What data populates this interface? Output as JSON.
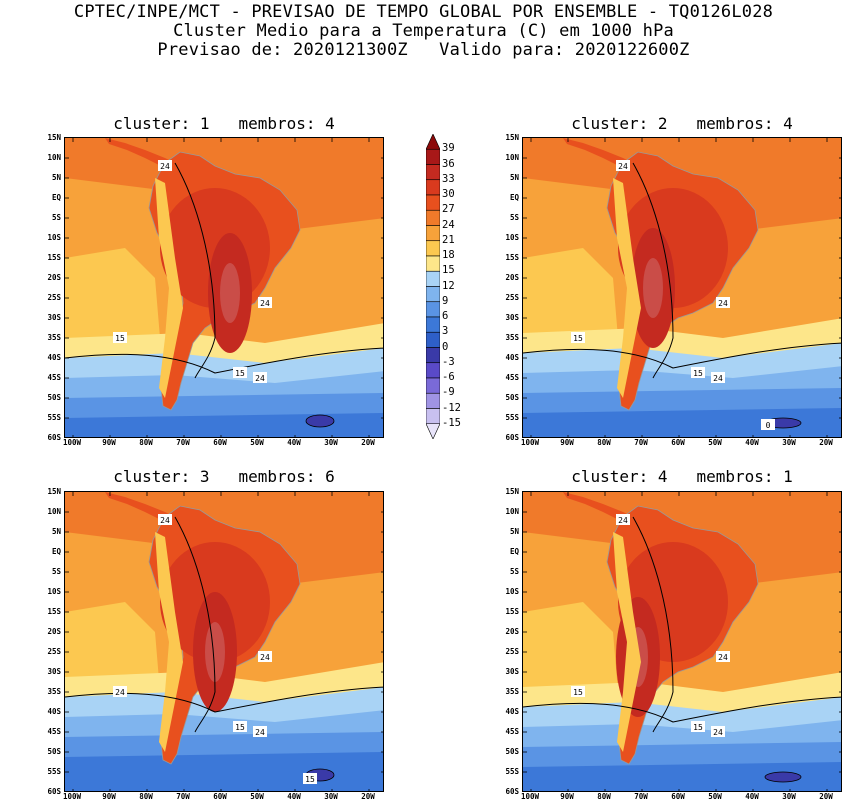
{
  "header": {
    "line1": "CPTEC/INPE/MCT - PREVISAO DE TEMPO GLOBAL POR ENSEMBLE - TQ0126L028",
    "line2": "Cluster Medio para a Temperatura (C) em 1000 hPa",
    "line3": "Previsao de: 2020121300Z   Valido para: 2020122600Z"
  },
  "panels": [
    {
      "title": "cluster: 1   membros: 4"
    },
    {
      "title": "cluster: 2   membros: 4"
    },
    {
      "title": "cluster: 3   membros: 6"
    },
    {
      "title": "cluster: 4   membros: 1"
    }
  ],
  "axes": {
    "lat_labels": [
      "15N",
      "10N",
      "5N",
      "EQ",
      "5S",
      "10S",
      "15S",
      "20S",
      "25S",
      "30S",
      "35S",
      "40S",
      "45S",
      "50S",
      "55S",
      "60S"
    ],
    "lon_labels": [
      "100W",
      "90W",
      "80W",
      "70W",
      "60W",
      "50W",
      "40W",
      "30W",
      "20W"
    ]
  },
  "colorbar": {
    "labels": [
      "39",
      "36",
      "33",
      "30",
      "27",
      "24",
      "21",
      "18",
      "15",
      "12",
      "9",
      "6",
      "3",
      "0",
      "-3",
      "-6",
      "-9",
      "-12",
      "-15"
    ],
    "colors": [
      "#8c0a0a",
      "#a81818",
      "#c42a20",
      "#d93a1e",
      "#e8501e",
      "#f07a2a",
      "#f7a23a",
      "#fcc850",
      "#fde68a",
      "#a9d3f5",
      "#7fb4ee",
      "#5a94e4",
      "#3c78d8",
      "#2e5fc8",
      "#3a3aa8",
      "#5a4ac8",
      "#7a6ad8",
      "#a094e4",
      "#c8c0f0",
      "#e8e4fa"
    ]
  },
  "contour_labels": {
    "p1": [
      "24",
      "24",
      "24",
      "15",
      "15"
    ],
    "p2": [
      "24",
      "24",
      "24",
      "15",
      "15",
      "0"
    ],
    "p3": [
      "24",
      "24",
      "24",
      "24",
      "15",
      "15"
    ],
    "p4": [
      "24",
      "24",
      "24",
      "15",
      "15"
    ]
  }
}
